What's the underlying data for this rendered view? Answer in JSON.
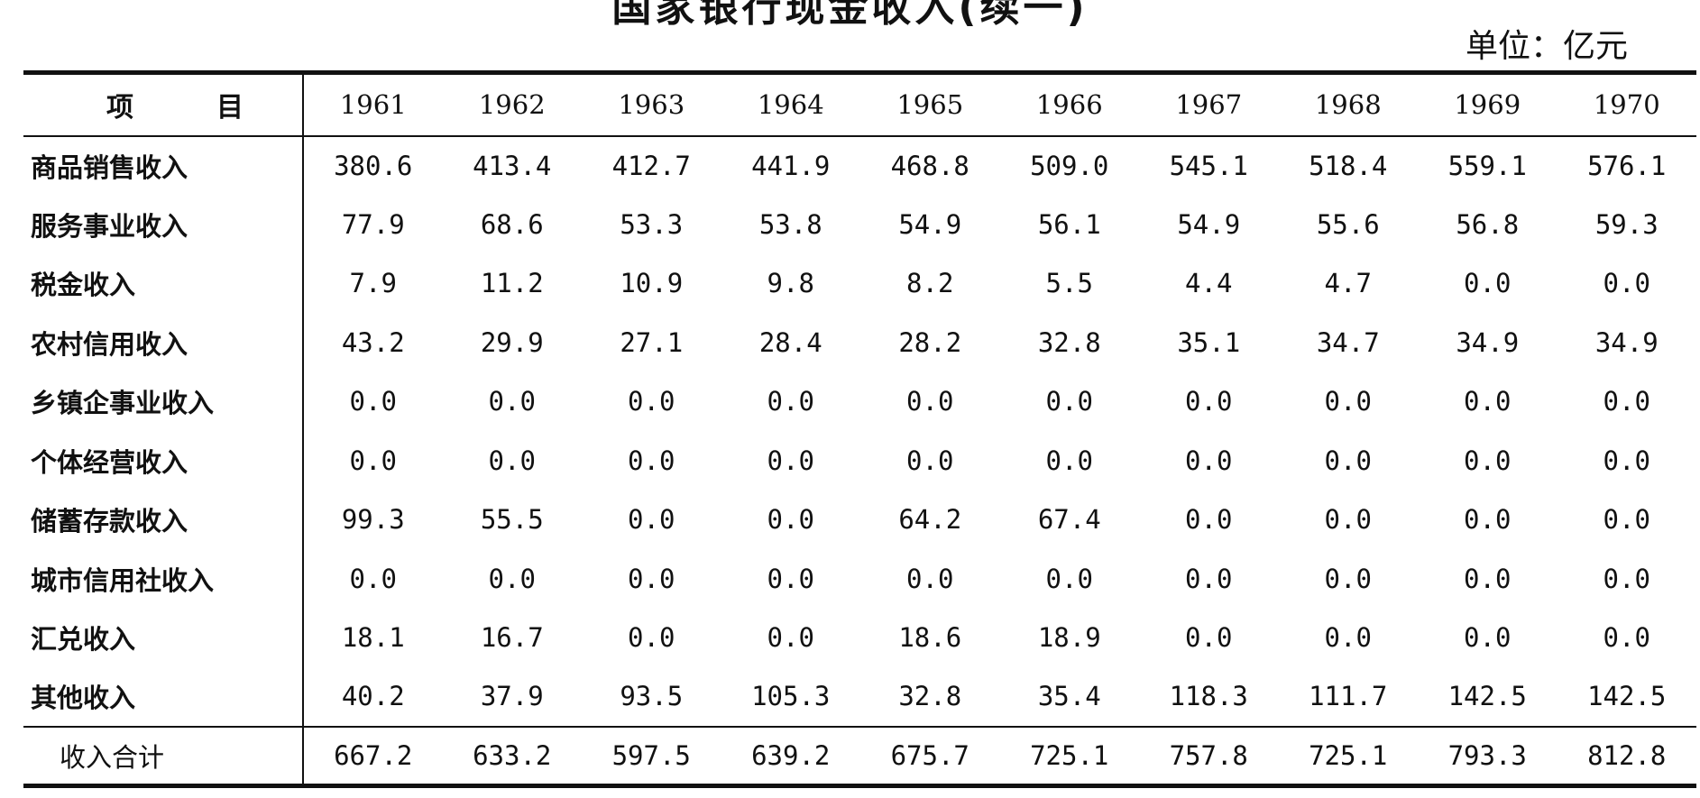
{
  "title": "国家银行现金收入(续一)",
  "unit": "单位：亿元",
  "table": {
    "item_header": "项目",
    "years": [
      "1961",
      "1962",
      "1963",
      "1964",
      "1965",
      "1966",
      "1967",
      "1968",
      "1969",
      "1970"
    ],
    "rows": [
      {
        "label": "商品销售收入",
        "values": [
          "380.6",
          "413.4",
          "412.7",
          "441.9",
          "468.8",
          "509.0",
          "545.1",
          "518.4",
          "559.1",
          "576.1"
        ]
      },
      {
        "label": "服务事业收入",
        "values": [
          "77.9",
          "68.6",
          "53.3",
          "53.8",
          "54.9",
          "56.1",
          "54.9",
          "55.6",
          "56.8",
          "59.3"
        ]
      },
      {
        "label": "税金收入",
        "values": [
          "7.9",
          "11.2",
          "10.9",
          "9.8",
          "8.2",
          "5.5",
          "4.4",
          "4.7",
          "0.0",
          "0.0"
        ]
      },
      {
        "label": "农村信用收入",
        "values": [
          "43.2",
          "29.9",
          "27.1",
          "28.4",
          "28.2",
          "32.8",
          "35.1",
          "34.7",
          "34.9",
          "34.9"
        ]
      },
      {
        "label": "乡镇企事业收入",
        "values": [
          "0.0",
          "0.0",
          "0.0",
          "0.0",
          "0.0",
          "0.0",
          "0.0",
          "0.0",
          "0.0",
          "0.0"
        ]
      },
      {
        "label": "个体经营收入",
        "values": [
          "0.0",
          "0.0",
          "0.0",
          "0.0",
          "0.0",
          "0.0",
          "0.0",
          "0.0",
          "0.0",
          "0.0"
        ]
      },
      {
        "label": "储蓄存款收入",
        "values": [
          "99.3",
          "55.5",
          "0.0",
          "0.0",
          "64.2",
          "67.4",
          "0.0",
          "0.0",
          "0.0",
          "0.0"
        ]
      },
      {
        "label": "城市信用社收入",
        "values": [
          "0.0",
          "0.0",
          "0.0",
          "0.0",
          "0.0",
          "0.0",
          "0.0",
          "0.0",
          "0.0",
          "0.0"
        ]
      },
      {
        "label": "汇兑收入",
        "values": [
          "18.1",
          "16.7",
          "0.0",
          "0.0",
          "18.6",
          "18.9",
          "0.0",
          "0.0",
          "0.0",
          "0.0"
        ]
      },
      {
        "label": "其他收入",
        "values": [
          "40.2",
          "37.9",
          "93.5",
          "105.3",
          "32.8",
          "35.4",
          "118.3",
          "111.7",
          "142.5",
          "142.5"
        ]
      }
    ],
    "total": {
      "label": "收入合计",
      "values": [
        "667.2",
        "633.2",
        "597.5",
        "639.2",
        "675.7",
        "725.1",
        "757.8",
        "725.1",
        "793.3",
        "812.8"
      ]
    }
  }
}
